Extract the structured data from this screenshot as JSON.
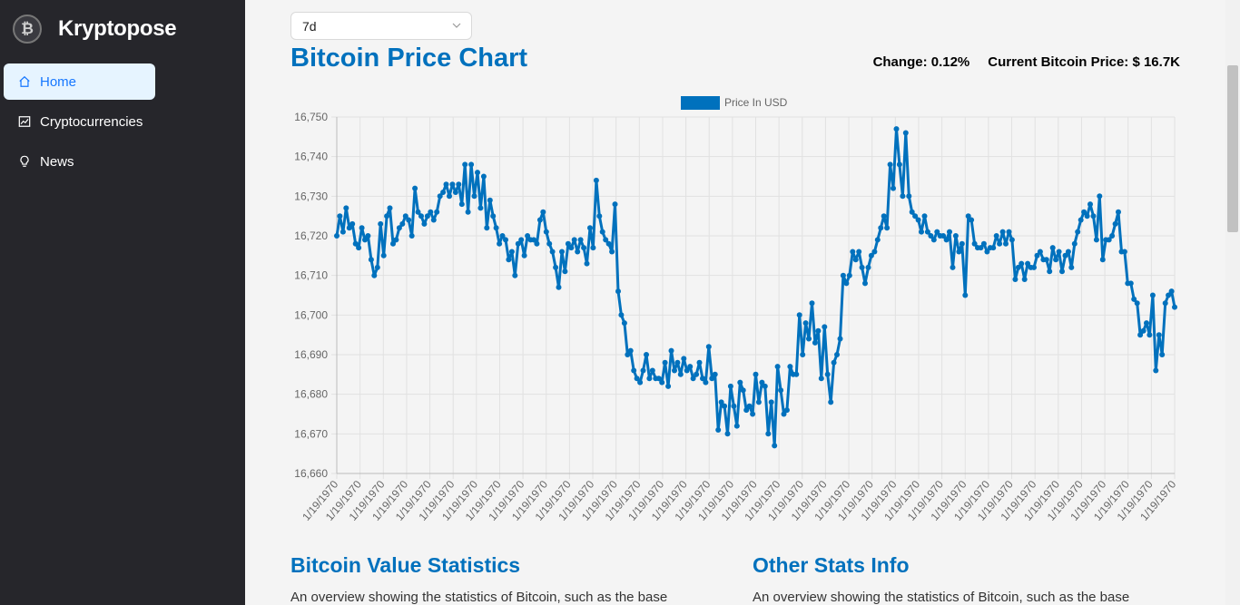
{
  "app": {
    "brand": "Kryptopose",
    "logo_glyph": "₿"
  },
  "sidebar": {
    "items": [
      {
        "label": "Home",
        "icon": "home-icon",
        "active": true
      },
      {
        "label": "Cryptocurrencies",
        "icon": "chart-icon",
        "active": false
      },
      {
        "label": "News",
        "icon": "bulb-icon",
        "active": false
      }
    ]
  },
  "period_select": {
    "value": "7d"
  },
  "header": {
    "title": "Bitcoin Price Chart",
    "change": "Change: 0.12%",
    "current_price": "Current Bitcoin Price: $ 16.7K"
  },
  "chart_data": {
    "type": "line",
    "legend": "Price In USD",
    "legend_position": "top-center",
    "color": "#0071bd",
    "grid": true,
    "ylim": [
      16660,
      16750
    ],
    "y_ticks": [
      "16,660",
      "16,670",
      "16,680",
      "16,690",
      "16,700",
      "16,710",
      "16,720",
      "16,730",
      "16,740",
      "16,750"
    ],
    "x_tick_label": "1/19/1970",
    "x_tick_count": 37,
    "values": [
      16720,
      16725,
      16721,
      16727,
      16722,
      16723,
      16718,
      16717,
      16722,
      16719,
      16720,
      16714,
      16710,
      16712,
      16723,
      16715,
      16725,
      16727,
      16718,
      16719,
      16722,
      16723,
      16725,
      16724,
      16720,
      16732,
      16726,
      16725,
      16723,
      16725,
      16726,
      16724,
      16726,
      16730,
      16731,
      16733,
      16730,
      16733,
      16731,
      16733,
      16728,
      16738,
      16726,
      16738,
      16730,
      16736,
      16727,
      16735,
      16722,
      16729,
      16725,
      16722,
      16718,
      16720,
      16719,
      16714,
      16716,
      16710,
      16718,
      16719,
      16715,
      16720,
      16719,
      16719,
      16718,
      16724,
      16726,
      16721,
      16718,
      16716,
      16712,
      16707,
      16716,
      16711,
      16718,
      16717,
      16719,
      16716,
      16719,
      16717,
      16713,
      16722,
      16717,
      16734,
      16725,
      16721,
      16719,
      16718,
      16716,
      16728,
      16706,
      16700,
      16698,
      16690,
      16691,
      16686,
      16684,
      16683,
      16686,
      16690,
      16684,
      16686,
      16684,
      16684,
      16683,
      16688,
      16682,
      16691,
      16686,
      16688,
      16685,
      16689,
      16686,
      16687,
      16684,
      16685,
      16688,
      16684,
      16683,
      16692,
      16684,
      16685,
      16671,
      16678,
      16677,
      16670,
      16682,
      16677,
      16672,
      16683,
      16681,
      16676,
      16677,
      16675,
      16685,
      16678,
      16683,
      16682,
      16670,
      16678,
      16667,
      16687,
      16681,
      16675,
      16676,
      16687,
      16685,
      16685,
      16700,
      16690,
      16698,
      16694,
      16703,
      16693,
      16696,
      16684,
      16697,
      16685,
      16678,
      16688,
      16690,
      16694,
      16710,
      16708,
      16710,
      16716,
      16714,
      16716,
      16712,
      16708,
      16712,
      16715,
      16716,
      16719,
      16722,
      16725,
      16722,
      16738,
      16732,
      16747,
      16738,
      16730,
      16746,
      16730,
      16726,
      16725,
      16724,
      16721,
      16725,
      16721,
      16720,
      16719,
      16721,
      16720,
      16720,
      16719,
      16721,
      16712,
      16720,
      16716,
      16718,
      16705,
      16725,
      16724,
      16718,
      16717,
      16717,
      16718,
      16716,
      16717,
      16717,
      16720,
      16718,
      16721,
      16718,
      16721,
      16719,
      16709,
      16712,
      16713,
      16709,
      16713,
      16712,
      16712,
      16715,
      16716,
      16714,
      16714,
      16711,
      16717,
      16714,
      16716,
      16711,
      16715,
      16716,
      16712,
      16718,
      16721,
      16724,
      16726,
      16725,
      16728,
      16725,
      16719,
      16730,
      16714,
      16719,
      16719,
      16720,
      16723,
      16726,
      16716,
      16716,
      16708,
      16708,
      16704,
      16703,
      16695,
      16696,
      16698,
      16695,
      16705,
      16686,
      16695,
      16690,
      16703,
      16705,
      16706,
      16702
    ]
  },
  "sections": [
    {
      "title": "Bitcoin Value Statistics",
      "desc": "An overview showing the statistics of Bitcoin, such as the base"
    },
    {
      "title": "Other Stats Info",
      "desc": "An overview showing the statistics of Bitcoin, such as the base"
    }
  ]
}
